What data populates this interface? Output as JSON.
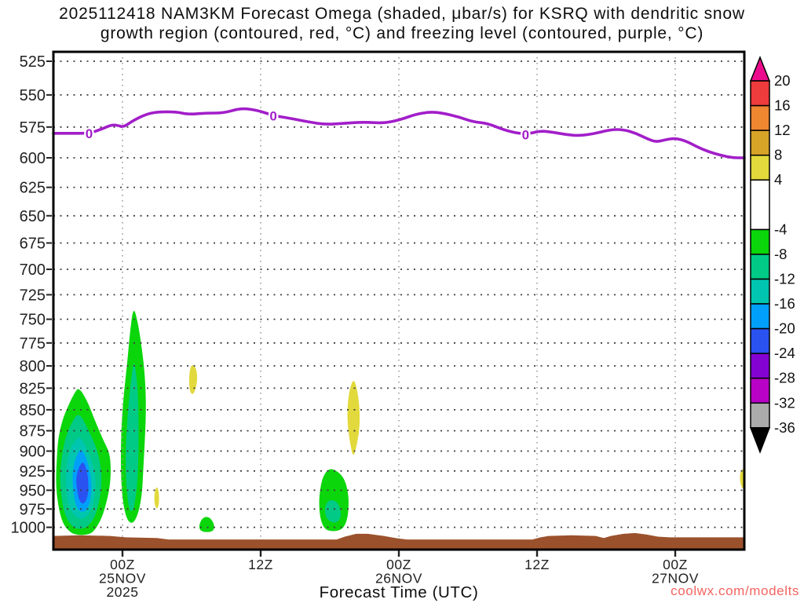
{
  "title": {
    "line1": "2025112418 NAM3KM Forecast Omega (shaded, μbar/s) for KSRQ with dendritic snow",
    "line2": "growth region (contoured, red, °C) and freezing level (contoured, purple, °C)"
  },
  "watermark": "coolwx.com/modelts",
  "palette": {
    "green": "#0bd60b",
    "emerald": "#00ca85",
    "turquoise": "#00c6b0",
    "sky": "#00a0fa",
    "blue": "#2a52f0",
    "yellow": "#e2d93c",
    "terrain": "#9b522c",
    "freezing": "#a21ec9",
    "label_color": "#222222"
  },
  "chart_data": {
    "type": "filled-contour-time-height",
    "shaded_variable": "Omega (μbar/s)",
    "station": "KSRQ",
    "model_run": "2025112418 NAM3KM",
    "xlabel": "Forecast Time (UTC)",
    "x_axis": {
      "hours": 60,
      "start": "24NOV 18Z",
      "end": "27NOV 06Z",
      "ticks": [
        {
          "t": 6,
          "lines": [
            "00Z",
            "25NOV",
            "2025"
          ]
        },
        {
          "t": 18,
          "lines": [
            "12Z"
          ]
        },
        {
          "t": 30,
          "lines": [
            "00Z",
            "26NOV"
          ]
        },
        {
          "t": 42,
          "lines": [
            "12Z"
          ]
        },
        {
          "t": 54,
          "lines": [
            "00Z",
            "27NOV"
          ]
        }
      ]
    },
    "y_axis": {
      "unit": "hPa",
      "scale": "log-pressure",
      "p_top": 518.2,
      "p_bottom": 1031.3,
      "ticks": [
        525,
        550,
        575,
        600,
        625,
        650,
        675,
        700,
        725,
        750,
        775,
        800,
        825,
        850,
        875,
        900,
        925,
        950,
        975,
        1000
      ]
    },
    "colorbar": {
      "labels": [
        20,
        16,
        12,
        8,
        4,
        -4,
        -8,
        -12,
        -16,
        -20,
        -24,
        -28,
        -32,
        -36
      ],
      "segment_colors": [
        "#ee3b3b",
        "#ef8630",
        "#d8a428",
        "#e2d93c",
        "#ffffff",
        "#0bd60b",
        "#00ca85",
        "#00c6b0",
        "#00a0fa",
        "#2a52f0",
        "#8402d2",
        "#b802c6",
        "#ababab"
      ],
      "arrow_top_color": "#ec0b8c",
      "arrow_bottom_color": "#000000"
    },
    "freezing_level": {
      "contour_value_label": "0",
      "zero_label_positions": [
        [
          3.1,
          580
        ],
        [
          19.1,
          566
        ],
        [
          41.0,
          581
        ]
      ],
      "points": [
        [
          0,
          580
        ],
        [
          1.5,
          580
        ],
        [
          3.1,
          580
        ],
        [
          4.1,
          577
        ],
        [
          5.1,
          573
        ],
        [
          5.7,
          574
        ],
        [
          6.1,
          575
        ],
        [
          6.9,
          570
        ],
        [
          8.0,
          565
        ],
        [
          9.0,
          563
        ],
        [
          10.7,
          563
        ],
        [
          11.7,
          565
        ],
        [
          13.2,
          564
        ],
        [
          14.8,
          564
        ],
        [
          16.3,
          560
        ],
        [
          17.8,
          562
        ],
        [
          19.1,
          566
        ],
        [
          20.5,
          568
        ],
        [
          22.2,
          571
        ],
        [
          23.6,
          573
        ],
        [
          25.3,
          572
        ],
        [
          27.0,
          571
        ],
        [
          28.7,
          572
        ],
        [
          30.2,
          569
        ],
        [
          31.4,
          565
        ],
        [
          32.7,
          563
        ],
        [
          33.8,
          564
        ],
        [
          35.2,
          567
        ],
        [
          36.5,
          571
        ],
        [
          37.7,
          572
        ],
        [
          39.3,
          578
        ],
        [
          41.0,
          581
        ],
        [
          42.3,
          578
        ],
        [
          43.3,
          579
        ],
        [
          44.5,
          581
        ],
        [
          45.7,
          582
        ],
        [
          47.1,
          580
        ],
        [
          48.4,
          577
        ],
        [
          49.5,
          577
        ],
        [
          50.6,
          580
        ],
        [
          51.7,
          585
        ],
        [
          52.4,
          587
        ],
        [
          53.2,
          585
        ],
        [
          54.0,
          584
        ],
        [
          54.9,
          586
        ],
        [
          55.9,
          591
        ],
        [
          56.9,
          595
        ],
        [
          58.0,
          598
        ],
        [
          59.0,
          600
        ],
        [
          60,
          600
        ]
      ]
    },
    "regions": [
      {
        "name": "omega -4 to -8",
        "color": "green",
        "points": [
          [
            2.2,
            824
          ],
          [
            2.9,
            838
          ],
          [
            3.7,
            866
          ],
          [
            4.35,
            887
          ],
          [
            4.9,
            903
          ],
          [
            5.0,
            924
          ],
          [
            4.9,
            946
          ],
          [
            4.5,
            973
          ],
          [
            4.1,
            991
          ],
          [
            3.5,
            1006
          ],
          [
            3.0,
            1010
          ],
          [
            2.2,
            1011
          ],
          [
            1.5,
            1008
          ],
          [
            0.8,
            995
          ],
          [
            0.4,
            970
          ],
          [
            0.2,
            940
          ],
          [
            0.3,
            908
          ],
          [
            0.4,
            885
          ],
          [
            0.8,
            861
          ],
          [
            1.4,
            842
          ],
          [
            1.85,
            830
          ]
        ]
      },
      {
        "name": "omega -8 to -12",
        "color": "emerald",
        "points": [
          [
            2.2,
            852
          ],
          [
            3.0,
            873
          ],
          [
            3.7,
            894
          ],
          [
            4.1,
            916
          ],
          [
            4.2,
            940
          ],
          [
            4.0,
            965
          ],
          [
            3.6,
            986
          ],
          [
            3.0,
            999
          ],
          [
            2.3,
            1003
          ],
          [
            1.6,
            999
          ],
          [
            1.0,
            984
          ],
          [
            0.7,
            961
          ],
          [
            0.55,
            934
          ],
          [
            0.7,
            909
          ],
          [
            1.0,
            885
          ],
          [
            1.55,
            866
          ]
        ]
      },
      {
        "name": "omega -12 to -16",
        "color": "turquoise",
        "points": [
          [
            2.3,
            881
          ],
          [
            3.0,
            899
          ],
          [
            3.55,
            922
          ],
          [
            3.7,
            944
          ],
          [
            3.5,
            968
          ],
          [
            3.0,
            984
          ],
          [
            2.4,
            990
          ],
          [
            1.8,
            984
          ],
          [
            1.3,
            970
          ],
          [
            1.1,
            950
          ],
          [
            1.1,
            924
          ],
          [
            1.35,
            902
          ],
          [
            1.85,
            887
          ]
        ]
      },
      {
        "name": "omega -16 to -20",
        "color": "sky",
        "points": [
          [
            2.45,
            896
          ],
          [
            2.95,
            912
          ],
          [
            3.25,
            932
          ],
          [
            3.35,
            953
          ],
          [
            3.05,
            973
          ],
          [
            2.6,
            980
          ],
          [
            2.1,
            976
          ],
          [
            1.8,
            961
          ],
          [
            1.65,
            941
          ],
          [
            1.7,
            920
          ],
          [
            2.05,
            904
          ]
        ]
      },
      {
        "name": "omega -20 to -24",
        "color": "blue",
        "points": [
          [
            2.6,
            912
          ],
          [
            2.95,
            926
          ],
          [
            3.05,
            942
          ],
          [
            3.0,
            958
          ],
          [
            2.65,
            969
          ],
          [
            2.25,
            965
          ],
          [
            2.05,
            950
          ],
          [
            1.95,
            935
          ],
          [
            2.2,
            920
          ]
        ]
      },
      {
        "name": "omega -4 to -8",
        "color": "green",
        "points": [
          [
            6.95,
            736
          ],
          [
            7.35,
            754
          ],
          [
            7.7,
            782
          ],
          [
            7.95,
            811
          ],
          [
            8.05,
            847
          ],
          [
            7.95,
            885
          ],
          [
            7.8,
            924
          ],
          [
            7.7,
            955
          ],
          [
            7.4,
            980
          ],
          [
            6.95,
            995
          ],
          [
            6.45,
            992
          ],
          [
            6.1,
            973
          ],
          [
            5.9,
            944
          ],
          [
            5.85,
            909
          ],
          [
            5.9,
            870
          ],
          [
            6.1,
            833
          ],
          [
            6.4,
            798
          ],
          [
            6.65,
            764
          ]
        ]
      },
      {
        "name": "omega -8 to -12",
        "color": "emerald",
        "points": [
          [
            7.0,
            792
          ],
          [
            7.3,
            820
          ],
          [
            7.4,
            856
          ],
          [
            7.4,
            899
          ],
          [
            7.3,
            940
          ],
          [
            7.05,
            970
          ],
          [
            6.8,
            980
          ],
          [
            6.55,
            973
          ],
          [
            6.35,
            949
          ],
          [
            6.25,
            914
          ],
          [
            6.35,
            875
          ],
          [
            6.55,
            838
          ],
          [
            6.8,
            810
          ]
        ]
      },
      {
        "name": "omega -4 to -8",
        "color": "green",
        "points": [
          [
            12.6,
            1002
          ],
          [
            12.8,
            990
          ],
          [
            13.2,
            985
          ],
          [
            13.65,
            987
          ],
          [
            14.0,
            997
          ],
          [
            13.9,
            1006
          ],
          [
            13.05,
            1007
          ]
        ]
      },
      {
        "name": "omega -4 to -8",
        "color": "green",
        "points": [
          [
            23.95,
            921
          ],
          [
            24.75,
            926
          ],
          [
            25.3,
            936
          ],
          [
            25.6,
            953
          ],
          [
            25.65,
            973
          ],
          [
            25.5,
            991
          ],
          [
            25.1,
            1003
          ],
          [
            24.3,
            1006
          ],
          [
            23.55,
            1003
          ],
          [
            23.2,
            990
          ],
          [
            23.05,
            970
          ],
          [
            23.15,
            949
          ],
          [
            23.4,
            932
          ]
        ]
      },
      {
        "name": "omega -8 to -12",
        "color": "emerald",
        "points": [
          [
            23.95,
            962
          ],
          [
            24.65,
            965
          ],
          [
            24.95,
            976
          ],
          [
            24.95,
            988
          ],
          [
            24.55,
            994
          ],
          [
            23.95,
            992
          ],
          [
            23.6,
            984
          ],
          [
            23.55,
            972
          ]
        ]
      },
      {
        "name": "omega 4 to 8",
        "color": "yellow",
        "points": [
          [
            8.98,
            944
          ],
          [
            9.18,
            953
          ],
          [
            9.18,
            969
          ],
          [
            8.98,
            976
          ],
          [
            8.77,
            968
          ],
          [
            8.77,
            953
          ]
        ]
      },
      {
        "name": "omega 4 to 8",
        "color": "yellow",
        "points": [
          [
            12.04,
            798
          ],
          [
            12.38,
            802
          ],
          [
            12.52,
            813
          ],
          [
            12.38,
            825
          ],
          [
            12.11,
            833
          ],
          [
            11.84,
            829
          ],
          [
            11.77,
            816
          ],
          [
            11.84,
            804
          ]
        ]
      },
      {
        "name": "omega 4 to 8",
        "color": "yellow",
        "points": [
          [
            26.05,
            813
          ],
          [
            26.39,
            827
          ],
          [
            26.6,
            848
          ],
          [
            26.6,
            870
          ],
          [
            26.39,
            890
          ],
          [
            26.05,
            909
          ],
          [
            25.78,
            892
          ],
          [
            25.58,
            873
          ],
          [
            25.51,
            852
          ],
          [
            25.65,
            830
          ]
        ]
      },
      {
        "name": "omega 4 to 8",
        "color": "yellow",
        "points": [
          [
            59.86,
            921
          ],
          [
            60.0,
            927
          ],
          [
            60.0,
            942
          ],
          [
            59.86,
            949
          ],
          [
            59.66,
            942
          ],
          [
            59.59,
            929
          ]
        ]
      }
    ],
    "terrain": {
      "name": "surface terrain",
      "top_profile": [
        [
          0,
          1012
        ],
        [
          2.2,
          1011
        ],
        [
          4.9,
          1012
        ],
        [
          6.3,
          1014
        ],
        [
          9.0,
          1015
        ],
        [
          10.0,
          1017
        ],
        [
          24.6,
          1017
        ],
        [
          25.3,
          1013
        ],
        [
          26.3,
          1009
        ],
        [
          27.3,
          1009
        ],
        [
          28.7,
          1012
        ],
        [
          29.7,
          1015
        ],
        [
          30.7,
          1017
        ],
        [
          41.6,
          1017
        ],
        [
          42.3,
          1014
        ],
        [
          43.0,
          1012
        ],
        [
          45.0,
          1011
        ],
        [
          47.1,
          1012
        ],
        [
          47.8,
          1015
        ],
        [
          48.4,
          1012
        ],
        [
          49.5,
          1009
        ],
        [
          50.5,
          1008
        ],
        [
          51.5,
          1010
        ],
        [
          52.5,
          1013
        ],
        [
          53.5,
          1014
        ],
        [
          56.6,
          1014
        ],
        [
          60,
          1014
        ]
      ]
    }
  }
}
